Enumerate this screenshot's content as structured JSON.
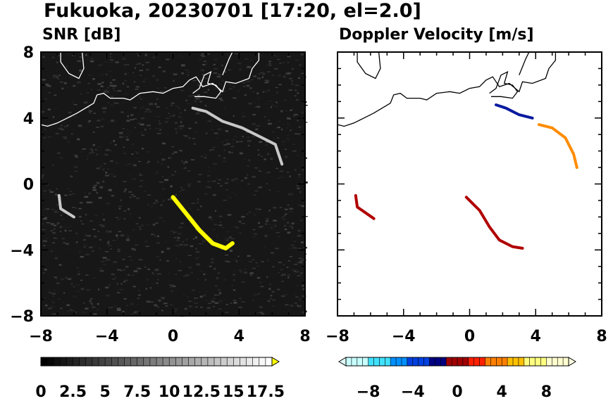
{
  "figure": {
    "title": "Fukuoka, 20230701 [17:20, el=2.0]"
  },
  "chart_data": [
    {
      "type": "heatmap",
      "title": "SNR [dB]",
      "xlabel": "",
      "ylabel": "",
      "xlim": [
        -8,
        8
      ],
      "ylim": [
        -8,
        8
      ],
      "x_ticks": [
        "-8",
        "-4",
        "0",
        "4",
        "8"
      ],
      "y_ticks": [
        "-8",
        "-4",
        "0",
        "4",
        "8"
      ],
      "colorbar": {
        "range": [
          0,
          18
        ],
        "extend": "max",
        "tick_labels": [
          "0",
          "2.5",
          "5",
          "7.5",
          "10",
          "12.5",
          "15",
          "17.5"
        ],
        "colors": [
          "#000000",
          "#ffffff",
          "#ffff00"
        ]
      },
      "echoes": [
        {
          "name": "coastal band north-east",
          "points": [
            [
              1.2,
              4.6
            ],
            [
              2.0,
              4.4
            ],
            [
              3.0,
              3.8
            ],
            [
              4.2,
              3.4
            ],
            [
              5.0,
              3.0
            ],
            [
              6.2,
              2.4
            ],
            [
              6.6,
              1.2
            ]
          ],
          "intensity": "weak"
        },
        {
          "name": "line south-east",
          "points": [
            [
              0.0,
              -0.8
            ],
            [
              0.8,
              -1.8
            ],
            [
              1.6,
              -2.8
            ],
            [
              2.4,
              -3.6
            ],
            [
              3.2,
              -3.9
            ],
            [
              3.6,
              -3.6
            ]
          ],
          "intensity": "strong"
        },
        {
          "name": "west fragment",
          "points": [
            [
              -6.9,
              -0.7
            ],
            [
              -6.8,
              -1.5
            ],
            [
              -6.0,
              -2.0
            ]
          ],
          "intensity": "weak"
        }
      ]
    },
    {
      "type": "heatmap",
      "title": "Doppler Velocity [m/s]",
      "xlabel": "",
      "ylabel": "",
      "xlim": [
        -8,
        8
      ],
      "ylim": [
        -8,
        8
      ],
      "x_ticks": [
        "-8",
        "-4",
        "0",
        "4",
        "8"
      ],
      "y_ticks": [],
      "colorbar": {
        "range": [
          -10,
          10
        ],
        "extend": "both",
        "tick_labels": [
          "-8",
          "-4",
          "0",
          "4",
          "8"
        ],
        "colors": [
          "#e0ffff",
          "#00e0ff",
          "#0060ff",
          "#0000a0",
          "#a00000",
          "#ff2000",
          "#ff9000",
          "#ffff60",
          "#ffffe0"
        ]
      },
      "echoes": [
        {
          "name": "coastal band north-east",
          "points": [
            [
              1.6,
              4.8
            ],
            [
              2.2,
              4.6
            ],
            [
              3.0,
              4.2
            ],
            [
              3.8,
              4.0
            ]
          ],
          "velocity": -6
        },
        {
          "name": "coastal band east",
          "points": [
            [
              4.2,
              3.6
            ],
            [
              5.0,
              3.4
            ],
            [
              5.8,
              2.8
            ],
            [
              6.3,
              1.8
            ],
            [
              6.5,
              1.0
            ]
          ],
          "velocity": 6
        },
        {
          "name": "line south-east",
          "points": [
            [
              -0.2,
              -0.8
            ],
            [
              0.6,
              -1.6
            ],
            [
              1.2,
              -2.6
            ],
            [
              1.8,
              -3.4
            ],
            [
              2.6,
              -3.8
            ],
            [
              3.2,
              -3.9
            ]
          ],
          "velocity": 0.5
        },
        {
          "name": "west fragment",
          "points": [
            [
              -6.9,
              -0.7
            ],
            [
              -6.8,
              -1.4
            ],
            [
              -5.8,
              -2.1
            ]
          ],
          "velocity": 0.5
        }
      ]
    }
  ],
  "map": {
    "coastline": [
      [
        -8,
        3.6
      ],
      [
        -7.6,
        3.5
      ],
      [
        -7.0,
        3.7
      ],
      [
        -6.4,
        4.0
      ],
      [
        -5.8,
        4.3
      ],
      [
        -4.8,
        4.9
      ],
      [
        -4.6,
        5.4
      ],
      [
        -4.2,
        5.5
      ],
      [
        -3.8,
        5.2
      ],
      [
        -3.0,
        5.2
      ],
      [
        -2.6,
        5.1
      ],
      [
        -2.0,
        5.5
      ],
      [
        -1.2,
        5.6
      ],
      [
        -0.6,
        5.5
      ],
      [
        0.0,
        5.8
      ],
      [
        0.6,
        5.9
      ],
      [
        1.0,
        6.3
      ],
      [
        1.4,
        6.5
      ],
      [
        1.6,
        6.2
      ],
      [
        1.8,
        5.9
      ],
      [
        2.4,
        6.1
      ],
      [
        3.0,
        5.6
      ],
      [
        3.2,
        6.2
      ],
      [
        3.8,
        6.1
      ],
      [
        4.6,
        6.4
      ],
      [
        4.8,
        7.0
      ],
      [
        5.2,
        7.5
      ],
      [
        5.2,
        8.0
      ]
    ],
    "coast_islands": [
      [
        [
          1.2,
          5.5
        ],
        [
          1.6,
          5.8
        ],
        [
          1.9,
          6.6
        ],
        [
          2.3,
          6.8
        ],
        [
          2.1,
          6.1
        ],
        [
          2.6,
          6.0
        ],
        [
          2.9,
          5.6
        ],
        [
          2.6,
          5.2
        ],
        [
          1.9,
          5.3
        ],
        [
          1.3,
          5.3
        ]
      ],
      [
        [
          3.0,
          6.6
        ],
        [
          3.4,
          7.6
        ],
        [
          3.6,
          8.0
        ]
      ],
      [
        [
          -6.8,
          8.0
        ],
        [
          -6.8,
          7.4
        ],
        [
          -6.3,
          6.7
        ],
        [
          -5.7,
          6.4
        ],
        [
          -5.4,
          7.0
        ],
        [
          -5.5,
          8.0
        ]
      ]
    ]
  }
}
